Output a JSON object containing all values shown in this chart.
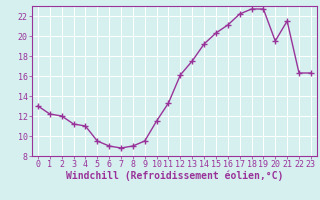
{
  "x": [
    0,
    1,
    2,
    3,
    4,
    5,
    6,
    7,
    8,
    9,
    10,
    11,
    12,
    13,
    14,
    15,
    16,
    17,
    18,
    19,
    20,
    21,
    22,
    23
  ],
  "y": [
    13.0,
    12.2,
    12.0,
    11.2,
    11.0,
    9.5,
    9.0,
    8.8,
    9.0,
    9.5,
    11.5,
    13.3,
    16.1,
    17.5,
    19.2,
    20.3,
    21.1,
    22.2,
    22.7,
    22.7,
    19.5,
    21.5,
    16.3,
    16.3
  ],
  "line_color": "#993399",
  "marker": "+",
  "marker_size": 4,
  "linewidth": 1.0,
  "xlabel": "Windchill (Refroidissement éolien,°C)",
  "xlabel_fontsize": 7,
  "background_color": "#d6f0f0",
  "grid_color": "#ffffff",
  "axis_color": "#993399",
  "xlim": [
    -0.5,
    23.5
  ],
  "ylim": [
    8,
    23
  ],
  "yticks": [
    8,
    10,
    12,
    14,
    16,
    18,
    20,
    22
  ],
  "xticks": [
    0,
    1,
    2,
    3,
    4,
    5,
    6,
    7,
    8,
    9,
    10,
    11,
    12,
    13,
    14,
    15,
    16,
    17,
    18,
    19,
    20,
    21,
    22,
    23
  ],
  "tick_fontsize": 6,
  "markeredgewidth": 1.0
}
